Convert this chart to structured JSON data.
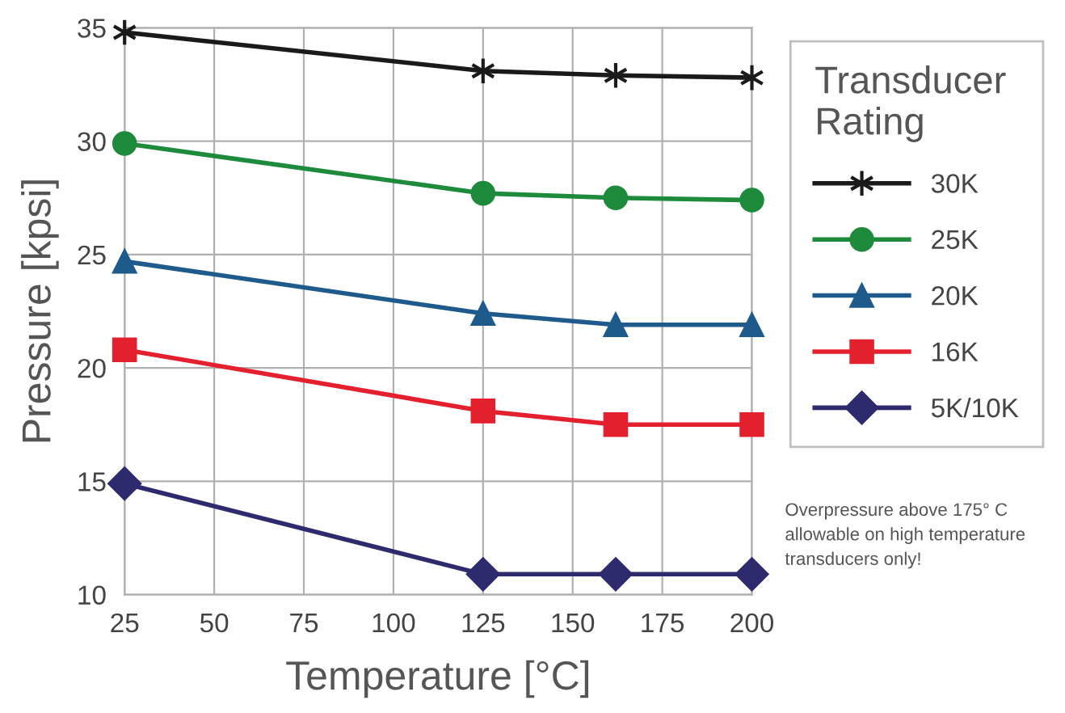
{
  "chart_data": {
    "type": "line",
    "xlabel": "Temperature [°C]",
    "ylabel": "Pressure [kpsi]",
    "legend_title": "Transducer Rating",
    "x": [
      25,
      125,
      162,
      200
    ],
    "series": [
      {
        "name": "30K",
        "color": "#1a1a1a",
        "marker": "cross",
        "values": [
          34.8,
          33.1,
          32.9,
          32.8
        ]
      },
      {
        "name": "25K",
        "color": "#1e8a3c",
        "marker": "circle",
        "values": [
          29.9,
          27.7,
          27.5,
          27.4
        ]
      },
      {
        "name": "20K",
        "color": "#1f5a8c",
        "marker": "triangle",
        "values": [
          24.7,
          22.4,
          21.9,
          21.9
        ]
      },
      {
        "name": "16K",
        "color": "#e4202e",
        "marker": "square",
        "values": [
          20.8,
          18.1,
          17.5,
          17.5
        ]
      },
      {
        "name": "5K/10K",
        "color": "#2e2a6e",
        "marker": "diamond",
        "values": [
          14.9,
          10.9,
          10.9,
          10.9
        ]
      }
    ],
    "xlim": [
      25,
      200
    ],
    "xticks": [
      25,
      50,
      75,
      100,
      125,
      150,
      175,
      200
    ],
    "ylim": [
      10,
      35
    ],
    "yticks": [
      10,
      15,
      20,
      25,
      30,
      35
    ],
    "grid": true,
    "legend": "right",
    "line_style": "solid",
    "annotations": [
      "Overpressure above 175° C allowable on high temperature transducers only!"
    ]
  }
}
